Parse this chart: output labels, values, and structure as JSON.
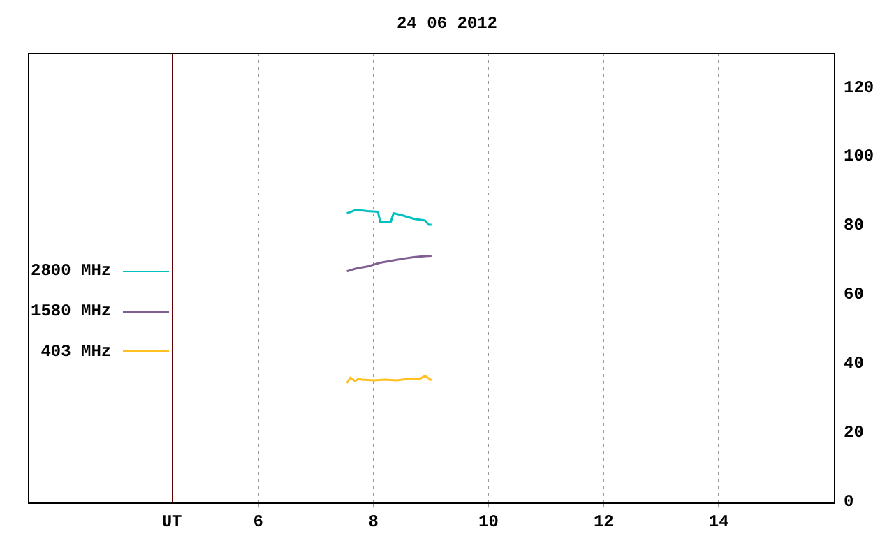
{
  "chart_data": {
    "type": "line",
    "title": "24 06 2012",
    "xlim": [
      2,
      16
    ],
    "xticks": [
      {
        "value": 4.5,
        "label": "UT"
      },
      6,
      8,
      10,
      12,
      14
    ],
    "ylim": [
      0,
      130
    ],
    "yticks": [
      0,
      20,
      40,
      60,
      80,
      100,
      120
    ],
    "grid": "x",
    "legend": "left",
    "marker": "none",
    "ref_lines": [
      {
        "axis": "x",
        "value": 4.5,
        "color": "#600000"
      }
    ],
    "series": [
      {
        "name": "2800 MHz",
        "color": "#00c0c0",
        "x": [
          7.54,
          7.7,
          7.9,
          8.08,
          8.12,
          8.3,
          8.35,
          8.5,
          8.7,
          8.9,
          8.96,
          9.01
        ],
        "values": [
          83.6,
          84.6,
          84.2,
          84,
          81,
          81,
          83.6,
          83,
          82,
          81.5,
          80.3,
          80.3
        ]
      },
      {
        "name": "1580 MHz",
        "color": "#7f5f8f",
        "x": [
          7.54,
          7.7,
          7.9,
          8.1,
          8.3,
          8.5,
          8.7,
          8.9,
          9.01
        ],
        "values": [
          66.8,
          67.6,
          68.2,
          69.2,
          69.8,
          70.4,
          70.9,
          71.2,
          71.3
        ]
      },
      {
        "name": "403 MHz",
        "color": "#ffc020",
        "x": [
          7.54,
          7.6,
          7.68,
          7.75,
          7.8,
          8.0,
          8.2,
          8.4,
          8.6,
          8.8,
          8.9,
          9.01
        ],
        "values": [
          34.4,
          36,
          35,
          35.7,
          35.4,
          35.2,
          35.4,
          35.2,
          35.6,
          35.6,
          36.5,
          35.2
        ]
      }
    ]
  }
}
